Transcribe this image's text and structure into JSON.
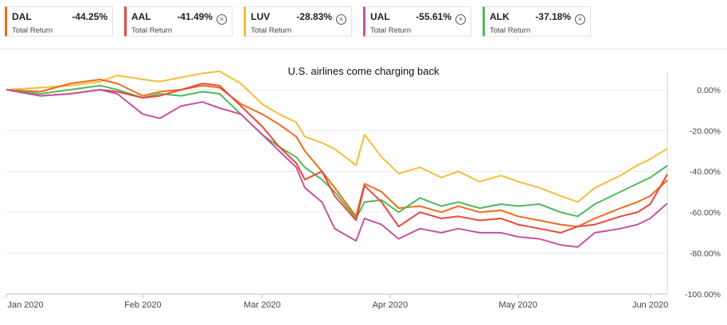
{
  "legend": [
    {
      "ticker": "DAL",
      "pct": "-44.25%",
      "sub": "Total Return",
      "color": "#f26a1b",
      "closable": false
    },
    {
      "ticker": "AAL",
      "pct": "-41.49%",
      "sub": "Total Return",
      "color": "#e8473f",
      "closable": true
    },
    {
      "ticker": "LUV",
      "pct": "-28.83%",
      "sub": "Total Return",
      "color": "#f5bd3a",
      "closable": true
    },
    {
      "ticker": "UAL",
      "pct": "-55.61%",
      "sub": "Total Return",
      "color": "#c9529c",
      "closable": true
    },
    {
      "ticker": "ALK",
      "pct": "-37.18%",
      "sub": "Total Return",
      "color": "#4cbb5b",
      "closable": true
    }
  ],
  "close_glyph": "⊗",
  "chart_data": {
    "type": "line",
    "title": "U.S. airlines come charging back",
    "x_ticks": [
      {
        "label": "Jan 2020",
        "date": "2020-01-02"
      },
      {
        "label": "Feb 2020",
        "date": "2020-02-03"
      },
      {
        "label": "Mar 2020",
        "date": "2020-03-02"
      },
      {
        "label": "Apr 2020",
        "date": "2020-04-01"
      },
      {
        "label": "May 2020",
        "date": "2020-05-01"
      },
      {
        "label": "Jun 2020",
        "date": "2020-06-01"
      }
    ],
    "xlim": [
      "2020-01-02",
      "2020-06-05"
    ],
    "y_ticks": [
      0,
      -20,
      -40,
      -60,
      -80,
      -100
    ],
    "y_tick_labels": [
      "0.00%",
      "-20.00%",
      "-40.00%",
      "-60.00%",
      "-80.00%",
      "-100.00%"
    ],
    "ylim": [
      -100,
      5
    ],
    "grid": true,
    "series": [
      {
        "name": "LUV",
        "color": "#f5bd3a",
        "values": [
          [
            "2020-01-02",
            0
          ],
          [
            "2020-01-10",
            1
          ],
          [
            "2020-01-17",
            2
          ],
          [
            "2020-01-24",
            4
          ],
          [
            "2020-01-28",
            7
          ],
          [
            "2020-02-03",
            5
          ],
          [
            "2020-02-07",
            4
          ],
          [
            "2020-02-12",
            6
          ],
          [
            "2020-02-17",
            8
          ],
          [
            "2020-02-21",
            9
          ],
          [
            "2020-02-26",
            3
          ],
          [
            "2020-03-02",
            -7
          ],
          [
            "2020-03-06",
            -12
          ],
          [
            "2020-03-10",
            -16
          ],
          [
            "2020-03-12",
            -23
          ],
          [
            "2020-03-16",
            -26
          ],
          [
            "2020-03-19",
            -29
          ],
          [
            "2020-03-24",
            -37
          ],
          [
            "2020-03-26",
            -22
          ],
          [
            "2020-03-30",
            -33
          ],
          [
            "2020-04-03",
            -41
          ],
          [
            "2020-04-08",
            -38
          ],
          [
            "2020-04-13",
            -43
          ],
          [
            "2020-04-17",
            -40
          ],
          [
            "2020-04-22",
            -45
          ],
          [
            "2020-04-27",
            -42
          ],
          [
            "2020-05-01",
            -45
          ],
          [
            "2020-05-06",
            -48
          ],
          [
            "2020-05-11",
            -52
          ],
          [
            "2020-05-15",
            -55
          ],
          [
            "2020-05-19",
            -48
          ],
          [
            "2020-05-25",
            -42
          ],
          [
            "2020-05-29",
            -37
          ],
          [
            "2020-06-01",
            -34
          ],
          [
            "2020-06-05",
            -28.83
          ]
        ]
      },
      {
        "name": "DAL",
        "color": "#f26a1b",
        "values": [
          [
            "2020-01-02",
            0
          ],
          [
            "2020-01-10",
            -1
          ],
          [
            "2020-01-17",
            3
          ],
          [
            "2020-01-24",
            5
          ],
          [
            "2020-01-28",
            3
          ],
          [
            "2020-02-03",
            -3
          ],
          [
            "2020-02-07",
            -1
          ],
          [
            "2020-02-12",
            0
          ],
          [
            "2020-02-17",
            2
          ],
          [
            "2020-02-21",
            1
          ],
          [
            "2020-02-26",
            -7
          ],
          [
            "2020-03-02",
            -12
          ],
          [
            "2020-03-06",
            -17
          ],
          [
            "2020-03-10",
            -23
          ],
          [
            "2020-03-12",
            -30
          ],
          [
            "2020-03-16",
            -40
          ],
          [
            "2020-03-19",
            -48
          ],
          [
            "2020-03-24",
            -62
          ],
          [
            "2020-03-26",
            -46
          ],
          [
            "2020-03-30",
            -50
          ],
          [
            "2020-04-03",
            -58
          ],
          [
            "2020-04-08",
            -57
          ],
          [
            "2020-04-13",
            -60
          ],
          [
            "2020-04-17",
            -57
          ],
          [
            "2020-04-22",
            -60
          ],
          [
            "2020-04-27",
            -59
          ],
          [
            "2020-05-01",
            -62
          ],
          [
            "2020-05-06",
            -64
          ],
          [
            "2020-05-11",
            -66
          ],
          [
            "2020-05-15",
            -67
          ],
          [
            "2020-05-19",
            -63
          ],
          [
            "2020-05-25",
            -58
          ],
          [
            "2020-05-29",
            -55
          ],
          [
            "2020-06-01",
            -52
          ],
          [
            "2020-06-05",
            -44.25
          ]
        ]
      },
      {
        "name": "ALK",
        "color": "#4cbb5b",
        "values": [
          [
            "2020-01-02",
            0
          ],
          [
            "2020-01-10",
            -2
          ],
          [
            "2020-01-17",
            0
          ],
          [
            "2020-01-24",
            2
          ],
          [
            "2020-01-28",
            0
          ],
          [
            "2020-02-03",
            -4
          ],
          [
            "2020-02-07",
            -2
          ],
          [
            "2020-02-12",
            -3
          ],
          [
            "2020-02-17",
            -1
          ],
          [
            "2020-02-21",
            -2
          ],
          [
            "2020-02-26",
            -12
          ],
          [
            "2020-03-02",
            -22
          ],
          [
            "2020-03-06",
            -28
          ],
          [
            "2020-03-10",
            -33
          ],
          [
            "2020-03-12",
            -38
          ],
          [
            "2020-03-16",
            -44
          ],
          [
            "2020-03-19",
            -50
          ],
          [
            "2020-03-24",
            -63
          ],
          [
            "2020-03-26",
            -55
          ],
          [
            "2020-03-30",
            -54
          ],
          [
            "2020-04-03",
            -60
          ],
          [
            "2020-04-08",
            -53
          ],
          [
            "2020-04-13",
            -57
          ],
          [
            "2020-04-17",
            -55
          ],
          [
            "2020-04-22",
            -58
          ],
          [
            "2020-04-27",
            -56
          ],
          [
            "2020-05-01",
            -57
          ],
          [
            "2020-05-06",
            -56
          ],
          [
            "2020-05-11",
            -60
          ],
          [
            "2020-05-15",
            -62
          ],
          [
            "2020-05-19",
            -56
          ],
          [
            "2020-05-25",
            -50
          ],
          [
            "2020-05-29",
            -46
          ],
          [
            "2020-06-01",
            -43
          ],
          [
            "2020-06-05",
            -37.18
          ]
        ]
      },
      {
        "name": "AAL",
        "color": "#e8473f",
        "values": [
          [
            "2020-01-02",
            0
          ],
          [
            "2020-01-10",
            -3
          ],
          [
            "2020-01-17",
            -2
          ],
          [
            "2020-01-24",
            0
          ],
          [
            "2020-01-28",
            -1
          ],
          [
            "2020-02-03",
            -4
          ],
          [
            "2020-02-07",
            -3
          ],
          [
            "2020-02-12",
            0
          ],
          [
            "2020-02-17",
            3
          ],
          [
            "2020-02-21",
            2
          ],
          [
            "2020-02-26",
            -8
          ],
          [
            "2020-03-02",
            -18
          ],
          [
            "2020-03-06",
            -28
          ],
          [
            "2020-03-10",
            -36
          ],
          [
            "2020-03-12",
            -44
          ],
          [
            "2020-03-16",
            -40
          ],
          [
            "2020-03-19",
            -52
          ],
          [
            "2020-03-24",
            -64
          ],
          [
            "2020-03-26",
            -47
          ],
          [
            "2020-03-30",
            -55
          ],
          [
            "2020-04-03",
            -67
          ],
          [
            "2020-04-08",
            -60
          ],
          [
            "2020-04-13",
            -63
          ],
          [
            "2020-04-17",
            -62
          ],
          [
            "2020-04-22",
            -64
          ],
          [
            "2020-04-27",
            -63
          ],
          [
            "2020-05-01",
            -66
          ],
          [
            "2020-05-06",
            -68
          ],
          [
            "2020-05-11",
            -70
          ],
          [
            "2020-05-15",
            -67
          ],
          [
            "2020-05-19",
            -66
          ],
          [
            "2020-05-25",
            -62
          ],
          [
            "2020-05-29",
            -60
          ],
          [
            "2020-06-01",
            -56
          ],
          [
            "2020-06-05",
            -41.49
          ]
        ]
      },
      {
        "name": "UAL",
        "color": "#c9529c",
        "values": [
          [
            "2020-01-02",
            0
          ],
          [
            "2020-01-10",
            -3
          ],
          [
            "2020-01-17",
            -2
          ],
          [
            "2020-01-24",
            0
          ],
          [
            "2020-01-28",
            -2
          ],
          [
            "2020-02-03",
            -12
          ],
          [
            "2020-02-07",
            -14
          ],
          [
            "2020-02-12",
            -8
          ],
          [
            "2020-02-17",
            -6
          ],
          [
            "2020-02-21",
            -9
          ],
          [
            "2020-02-26",
            -12
          ],
          [
            "2020-03-02",
            -22
          ],
          [
            "2020-03-06",
            -30
          ],
          [
            "2020-03-10",
            -38
          ],
          [
            "2020-03-12",
            -48
          ],
          [
            "2020-03-16",
            -55
          ],
          [
            "2020-03-19",
            -68
          ],
          [
            "2020-03-24",
            -74
          ],
          [
            "2020-03-26",
            -63
          ],
          [
            "2020-03-30",
            -66
          ],
          [
            "2020-04-03",
            -73
          ],
          [
            "2020-04-08",
            -68
          ],
          [
            "2020-04-13",
            -70
          ],
          [
            "2020-04-17",
            -68
          ],
          [
            "2020-04-22",
            -70
          ],
          [
            "2020-04-27",
            -70
          ],
          [
            "2020-05-01",
            -72
          ],
          [
            "2020-05-06",
            -73
          ],
          [
            "2020-05-11",
            -76
          ],
          [
            "2020-05-15",
            -77
          ],
          [
            "2020-05-19",
            -70
          ],
          [
            "2020-05-25",
            -68
          ],
          [
            "2020-05-29",
            -66
          ],
          [
            "2020-06-01",
            -63
          ],
          [
            "2020-06-05",
            -55.61
          ]
        ]
      }
    ]
  }
}
